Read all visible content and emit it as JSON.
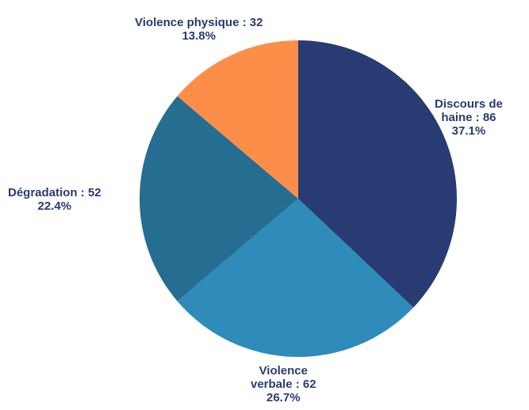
{
  "chart_data": {
    "type": "pie",
    "title": "",
    "start_angle_deg": 0,
    "direction": "clockwise",
    "slices": [
      {
        "label": "Discours de haine",
        "value": 86,
        "percent": "37.1%",
        "color": "#283b72",
        "label_line1": "Discours de",
        "label_line2": "haine : 86"
      },
      {
        "label": "Violence verbale",
        "value": 62,
        "percent": "26.7%",
        "color": "#2e8bba",
        "label_line1": "Violence",
        "label_line2": "verbale : 62"
      },
      {
        "label": "Dégradation",
        "value": 52,
        "percent": "22.4%",
        "color": "#256d91",
        "label_line1": "Dégradation : 52",
        "label_line2": ""
      },
      {
        "label": "Violence physique",
        "value": 32,
        "percent": "13.8%",
        "color": "#fd8e4a",
        "label_line1": "Violence physique : 32",
        "label_line2": ""
      }
    ]
  },
  "colors": {
    "label_text": "#2a3b72"
  }
}
